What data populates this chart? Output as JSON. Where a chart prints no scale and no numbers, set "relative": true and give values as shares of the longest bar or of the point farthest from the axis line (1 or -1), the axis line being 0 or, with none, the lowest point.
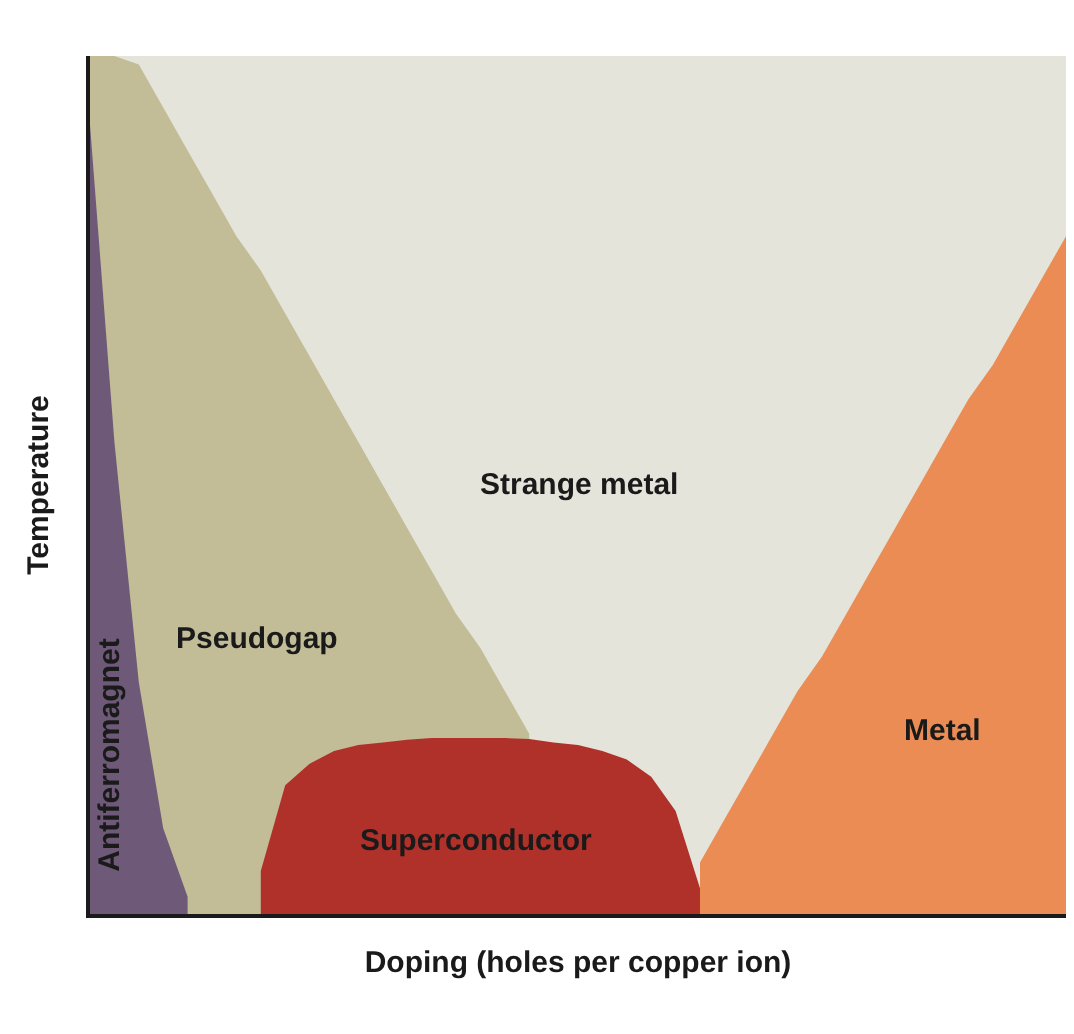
{
  "chart_data": {
    "type": "area",
    "relative": true,
    "xlabel": "Doping (holes per copper ion)",
    "ylabel": "Temperature",
    "legend": false,
    "categories": [
      null,
      null,
      null,
      null,
      null,
      null,
      null,
      null,
      null,
      null,
      null,
      null,
      null,
      null,
      null,
      null,
      null,
      null,
      null,
      null,
      null,
      null,
      null,
      null,
      null,
      null,
      null,
      null,
      null,
      null,
      null,
      null,
      null,
      null,
      null,
      null,
      null,
      null,
      null,
      null,
      null
    ],
    "series": [
      {
        "name": "Strange metal",
        "color": "#e4e4da",
        "values": [
          1,
          1,
          1,
          1,
          1,
          1,
          1,
          1,
          1,
          1,
          1,
          1,
          1,
          1,
          1,
          1,
          1,
          1,
          1,
          1,
          1,
          1,
          1,
          1,
          1,
          1,
          1,
          1,
          1,
          1,
          1,
          1,
          1,
          1,
          1,
          1,
          1,
          1,
          1,
          1,
          1
        ]
      },
      {
        "name": "Pseudogap",
        "color": "#c2bc97",
        "values": [
          1,
          1,
          0.99,
          0.94,
          0.89,
          0.84,
          0.79,
          0.75,
          0.7,
          0.65,
          0.6,
          0.55,
          0.5,
          0.45,
          0.4,
          0.35,
          0.31,
          0.26,
          0.21,
          null,
          null,
          null,
          null,
          null,
          null,
          null,
          null,
          null,
          null,
          null,
          null,
          null,
          null,
          null,
          null,
          null,
          null,
          null,
          null,
          null,
          null
        ]
      },
      {
        "name": "Antiferromagnet",
        "color": "#6e5a78",
        "values": [
          0.92,
          0.55,
          0.27,
          0.1,
          0.02,
          null,
          null,
          null,
          null,
          null,
          null,
          null,
          null,
          null,
          null,
          null,
          null,
          null,
          null,
          null,
          null,
          null,
          null,
          null,
          null,
          null,
          null,
          null,
          null,
          null,
          null,
          null,
          null,
          null,
          null,
          null,
          null,
          null,
          null,
          null,
          null
        ]
      },
      {
        "name": "Metal",
        "color": "#eb8c55",
        "values": [
          null,
          null,
          null,
          null,
          null,
          null,
          null,
          null,
          null,
          null,
          null,
          null,
          null,
          null,
          null,
          null,
          null,
          null,
          null,
          null,
          null,
          null,
          null,
          null,
          null,
          0.06,
          0.11,
          0.16,
          0.21,
          0.26,
          0.3,
          0.35,
          0.4,
          0.45,
          0.5,
          0.55,
          0.6,
          0.64,
          0.69,
          0.74,
          0.79
        ]
      },
      {
        "name": "Superconductor",
        "color": "#b0302a",
        "values": [
          null,
          null,
          null,
          null,
          null,
          null,
          null,
          0.05,
          0.15,
          0.175,
          0.19,
          0.197,
          0.2,
          0.203,
          0.205,
          0.205,
          0.205,
          0.205,
          0.204,
          0.2,
          0.197,
          0.19,
          0.18,
          0.16,
          0.12,
          0.03,
          null,
          null,
          null,
          null,
          null,
          null,
          null,
          null,
          null,
          null,
          null,
          null,
          null,
          null,
          null
        ]
      }
    ]
  }
}
